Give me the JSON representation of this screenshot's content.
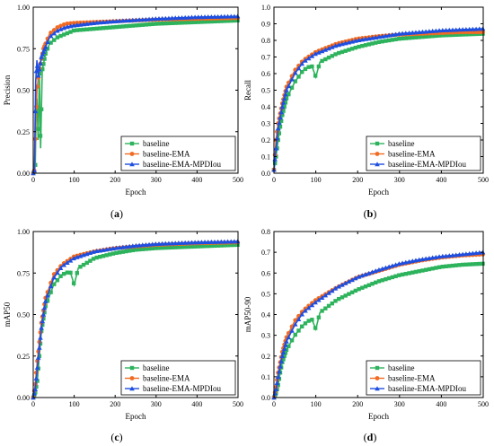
{
  "chart_data": [
    {
      "type": "line",
      "panel_label": "(a)",
      "panel_label_parts": [
        "(",
        "a",
        ")"
      ],
      "xlabel": "Epoch",
      "ylabel": "Precision",
      "xlim": [
        0,
        500
      ],
      "ylim": [
        0,
        1
      ],
      "xticks": [
        0,
        100,
        200,
        300,
        400,
        500
      ],
      "yticks": [
        0,
        0.25,
        0.5,
        0.75,
        1
      ],
      "ytick_labels": [
        "0.00",
        "0.25",
        "0.50",
        "0.75",
        "1.00"
      ],
      "legend_position": "bottom-right",
      "series": [
        {
          "name": "baseline",
          "color": "#2db35c",
          "marker": "square",
          "points": [
            [
              0,
              0
            ],
            [
              3,
              0.01
            ],
            [
              5,
              0.05
            ],
            [
              7,
              0.35
            ],
            [
              9,
              0.45
            ],
            [
              12,
              0.2
            ],
            [
              15,
              0.6
            ],
            [
              18,
              0.15
            ],
            [
              22,
              0.62
            ],
            [
              30,
              0.72
            ],
            [
              40,
              0.78
            ],
            [
              60,
              0.82
            ],
            [
              80,
              0.84
            ],
            [
              100,
              0.86
            ],
            [
              150,
              0.87
            ],
            [
              200,
              0.88
            ],
            [
              250,
              0.89
            ],
            [
              300,
              0.9
            ],
            [
              350,
              0.905
            ],
            [
              400,
              0.91
            ],
            [
              450,
              0.915
            ],
            [
              500,
              0.92
            ]
          ]
        },
        {
          "name": "baseline-EMA",
          "color": "#f26b22",
          "marker": "circle",
          "points": [
            [
              0,
              0
            ],
            [
              3,
              0.02
            ],
            [
              6,
              0.3
            ],
            [
              9,
              0.5
            ],
            [
              15,
              0.63
            ],
            [
              25,
              0.75
            ],
            [
              40,
              0.84
            ],
            [
              60,
              0.88
            ],
            [
              80,
              0.9
            ],
            [
              100,
              0.905
            ],
            [
              150,
              0.91
            ],
            [
              200,
              0.915
            ],
            [
              300,
              0.925
            ],
            [
              400,
              0.93
            ],
            [
              500,
              0.935
            ]
          ]
        },
        {
          "name": "baseline-EMA-MPDIou",
          "color": "#1f4fe0",
          "marker": "triangle",
          "points": [
            [
              0,
              0
            ],
            [
              3,
              0.02
            ],
            [
              6,
              0.55
            ],
            [
              9,
              0.68
            ],
            [
              12,
              0.58
            ],
            [
              20,
              0.7
            ],
            [
              40,
              0.82
            ],
            [
              60,
              0.86
            ],
            [
              80,
              0.88
            ],
            [
              100,
              0.89
            ],
            [
              150,
              0.905
            ],
            [
              200,
              0.915
            ],
            [
              300,
              0.93
            ],
            [
              400,
              0.94
            ],
            [
              500,
              0.945
            ]
          ]
        }
      ]
    },
    {
      "type": "line",
      "panel_label": "(b)",
      "panel_label_parts": [
        "(",
        "b",
        ")"
      ],
      "xlabel": "Epoch",
      "ylabel": "Recall",
      "xlim": [
        0,
        500
      ],
      "ylim": [
        0,
        1
      ],
      "xticks": [
        0,
        100,
        200,
        300,
        400,
        500
      ],
      "yticks": [
        0,
        0.1,
        0.2,
        0.3,
        0.4,
        0.5,
        0.6,
        0.7,
        0.8,
        0.9,
        1
      ],
      "ytick_labels": [
        "0.0",
        "0.1",
        "0.2",
        "0.3",
        "0.4",
        "0.5",
        "0.6",
        "0.7",
        "0.8",
        "0.9",
        "1.0"
      ],
      "legend_position": "bottom-right",
      "series": [
        {
          "name": "baseline",
          "color": "#2db35c",
          "marker": "square",
          "points": [
            [
              0,
              0.02
            ],
            [
              5,
              0.1
            ],
            [
              10,
              0.2
            ],
            [
              15,
              0.28
            ],
            [
              20,
              0.35
            ],
            [
              30,
              0.45
            ],
            [
              50,
              0.55
            ],
            [
              70,
              0.62
            ],
            [
              90,
              0.65
            ],
            [
              100,
              0.58
            ],
            [
              110,
              0.67
            ],
            [
              150,
              0.72
            ],
            [
              200,
              0.76
            ],
            [
              250,
              0.79
            ],
            [
              300,
              0.81
            ],
            [
              350,
              0.82
            ],
            [
              400,
              0.83
            ],
            [
              450,
              0.835
            ],
            [
              500,
              0.84
            ]
          ]
        },
        {
          "name": "baseline-EMA",
          "color": "#f26b22",
          "marker": "circle",
          "points": [
            [
              0,
              0.02
            ],
            [
              5,
              0.2
            ],
            [
              10,
              0.3
            ],
            [
              20,
              0.42
            ],
            [
              30,
              0.52
            ],
            [
              50,
              0.62
            ],
            [
              70,
              0.68
            ],
            [
              100,
              0.73
            ],
            [
              150,
              0.78
            ],
            [
              200,
              0.81
            ],
            [
              250,
              0.825
            ],
            [
              300,
              0.835
            ],
            [
              350,
              0.84
            ],
            [
              400,
              0.845
            ],
            [
              450,
              0.85
            ],
            [
              500,
              0.85
            ]
          ]
        },
        {
          "name": "baseline-EMA-MPDIou",
          "color": "#1f4fe0",
          "marker": "triangle",
          "points": [
            [
              0,
              0.02
            ],
            [
              5,
              0.15
            ],
            [
              10,
              0.27
            ],
            [
              20,
              0.4
            ],
            [
              30,
              0.5
            ],
            [
              50,
              0.6
            ],
            [
              70,
              0.67
            ],
            [
              100,
              0.72
            ],
            [
              150,
              0.77
            ],
            [
              200,
              0.8
            ],
            [
              250,
              0.82
            ],
            [
              300,
              0.84
            ],
            [
              350,
              0.85
            ],
            [
              400,
              0.86
            ],
            [
              450,
              0.865
            ],
            [
              500,
              0.87
            ]
          ]
        }
      ]
    },
    {
      "type": "line",
      "panel_label": "(c)",
      "panel_label_parts": [
        "(",
        "c",
        ")"
      ],
      "xlabel": "Epoch",
      "ylabel": "mAP50",
      "xlim": [
        0,
        500
      ],
      "ylim": [
        0,
        1
      ],
      "xticks": [
        0,
        100,
        200,
        300,
        400,
        500
      ],
      "yticks": [
        0,
        0.25,
        0.5,
        0.75,
        1
      ],
      "ytick_labels": [
        "0.00",
        "0.25",
        "0.50",
        "0.75",
        "1.00"
      ],
      "legend_position": "bottom-right",
      "series": [
        {
          "name": "baseline",
          "color": "#2db35c",
          "marker": "square",
          "points": [
            [
              0,
              0
            ],
            [
              5,
              0.03
            ],
            [
              10,
              0.1
            ],
            [
              15,
              0.25
            ],
            [
              20,
              0.4
            ],
            [
              30,
              0.55
            ],
            [
              50,
              0.68
            ],
            [
              70,
              0.74
            ],
            [
              90,
              0.76
            ],
            [
              100,
              0.68
            ],
            [
              110,
              0.78
            ],
            [
              150,
              0.84
            ],
            [
              200,
              0.87
            ],
            [
              250,
              0.89
            ],
            [
              300,
              0.9
            ],
            [
              350,
              0.905
            ],
            [
              400,
              0.91
            ],
            [
              450,
              0.915
            ],
            [
              500,
              0.92
            ]
          ]
        },
        {
          "name": "baseline-EMA",
          "color": "#f26b22",
          "marker": "circle",
          "points": [
            [
              0,
              0
            ],
            [
              5,
              0.08
            ],
            [
              10,
              0.22
            ],
            [
              20,
              0.45
            ],
            [
              30,
              0.6
            ],
            [
              50,
              0.74
            ],
            [
              70,
              0.8
            ],
            [
              100,
              0.85
            ],
            [
              150,
              0.88
            ],
            [
              200,
              0.9
            ],
            [
              250,
              0.91
            ],
            [
              300,
              0.92
            ],
            [
              400,
              0.93
            ],
            [
              500,
              0.935
            ]
          ]
        },
        {
          "name": "baseline-EMA-MPDIou",
          "color": "#1f4fe0",
          "marker": "triangle",
          "points": [
            [
              0,
              0
            ],
            [
              5,
              0.05
            ],
            [
              10,
              0.18
            ],
            [
              20,
              0.42
            ],
            [
              30,
              0.58
            ],
            [
              50,
              0.72
            ],
            [
              70,
              0.79
            ],
            [
              100,
              0.84
            ],
            [
              150,
              0.88
            ],
            [
              200,
              0.9
            ],
            [
              250,
              0.915
            ],
            [
              300,
              0.925
            ],
            [
              400,
              0.935
            ],
            [
              500,
              0.94
            ]
          ]
        }
      ]
    },
    {
      "type": "line",
      "panel_label": "(d)",
      "panel_label_parts": [
        "(",
        "d",
        ")"
      ],
      "xlabel": "Epoch",
      "ylabel": "mAP50-90",
      "xlim": [
        0,
        500
      ],
      "ylim": [
        0,
        0.8
      ],
      "xticks": [
        0,
        100,
        200,
        300,
        400,
        500
      ],
      "yticks": [
        0,
        0.1,
        0.2,
        0.3,
        0.4,
        0.5,
        0.6,
        0.7,
        0.8
      ],
      "ytick_labels": [
        "0.0",
        "0.1",
        "0.2",
        "0.3",
        "0.4",
        "0.5",
        "0.6",
        "0.7",
        "0.8"
      ],
      "legend_position": "bottom-right",
      "series": [
        {
          "name": "baseline",
          "color": "#2db35c",
          "marker": "square",
          "points": [
            [
              0,
              0
            ],
            [
              5,
              0.02
            ],
            [
              10,
              0.06
            ],
            [
              15,
              0.12
            ],
            [
              20,
              0.17
            ],
            [
              30,
              0.23
            ],
            [
              50,
              0.3
            ],
            [
              70,
              0.35
            ],
            [
              90,
              0.38
            ],
            [
              100,
              0.33
            ],
            [
              110,
              0.41
            ],
            [
              150,
              0.47
            ],
            [
              200,
              0.52
            ],
            [
              250,
              0.56
            ],
            [
              300,
              0.59
            ],
            [
              350,
              0.61
            ],
            [
              400,
              0.63
            ],
            [
              450,
              0.64
            ],
            [
              500,
              0.645
            ]
          ]
        },
        {
          "name": "baseline-EMA",
          "color": "#f26b22",
          "marker": "circle",
          "points": [
            [
              0,
              0
            ],
            [
              5,
              0.05
            ],
            [
              10,
              0.12
            ],
            [
              20,
              0.22
            ],
            [
              30,
              0.29
            ],
            [
              50,
              0.37
            ],
            [
              70,
              0.42
            ],
            [
              100,
              0.47
            ],
            [
              150,
              0.53
            ],
            [
              200,
              0.58
            ],
            [
              250,
              0.61
            ],
            [
              300,
              0.64
            ],
            [
              350,
              0.66
            ],
            [
              400,
              0.675
            ],
            [
              450,
              0.685
            ],
            [
              500,
              0.69
            ]
          ]
        },
        {
          "name": "baseline-EMA-MPDIou",
          "color": "#1f4fe0",
          "marker": "triangle",
          "points": [
            [
              0,
              0
            ],
            [
              5,
              0.04
            ],
            [
              10,
              0.1
            ],
            [
              20,
              0.2
            ],
            [
              30,
              0.27
            ],
            [
              50,
              0.35
            ],
            [
              70,
              0.41
            ],
            [
              100,
              0.46
            ],
            [
              150,
              0.53
            ],
            [
              200,
              0.58
            ],
            [
              250,
              0.615
            ],
            [
              300,
              0.645
            ],
            [
              350,
              0.665
            ],
            [
              400,
              0.68
            ],
            [
              450,
              0.69
            ],
            [
              500,
              0.7
            ]
          ]
        }
      ]
    }
  ]
}
